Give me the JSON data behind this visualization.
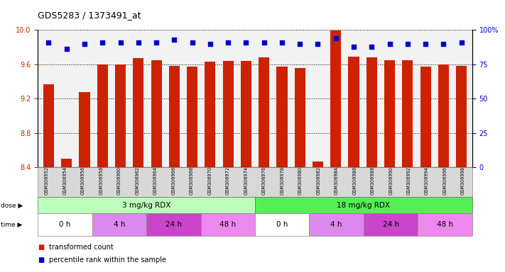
{
  "title": "GDS5283 / 1373491_at",
  "samples": [
    "GSM306952",
    "GSM306954",
    "GSM306956",
    "GSM306958",
    "GSM306960",
    "GSM306962",
    "GSM306964",
    "GSM306966",
    "GSM306968",
    "GSM306970",
    "GSM306972",
    "GSM306974",
    "GSM306976",
    "GSM306978",
    "GSM306980",
    "GSM306982",
    "GSM306984",
    "GSM306986",
    "GSM306988",
    "GSM306990",
    "GSM306992",
    "GSM306994",
    "GSM306996",
    "GSM306998"
  ],
  "bar_values": [
    9.37,
    8.5,
    9.28,
    9.6,
    9.6,
    9.67,
    9.65,
    9.58,
    9.57,
    9.63,
    9.64,
    9.64,
    9.68,
    9.57,
    9.56,
    8.47,
    9.99,
    9.69,
    9.68,
    9.65,
    9.65,
    9.57,
    9.6,
    9.58
  ],
  "percentile_values": [
    91,
    86,
    90,
    91,
    91,
    91,
    91,
    93,
    91,
    90,
    91,
    91,
    91,
    91,
    90,
    90,
    94,
    88,
    88,
    90,
    90,
    90,
    90,
    91
  ],
  "ylim_left": [
    8.4,
    10.0
  ],
  "ylim_right": [
    0,
    100
  ],
  "yticks_left": [
    8.4,
    8.8,
    9.2,
    9.6,
    10.0
  ],
  "yticks_right": [
    0,
    25,
    50,
    75,
    100
  ],
  "bar_color": "#cc2200",
  "percentile_color": "#0000cc",
  "bar_base": 8.4,
  "dose_groups": [
    {
      "label": "3 mg/kg RDX",
      "start": 0,
      "end": 11,
      "color": "#bbffbb"
    },
    {
      "label": "18 mg/kg RDX",
      "start": 12,
      "end": 23,
      "color": "#55ee55"
    }
  ],
  "time_groups": [
    {
      "label": "0 h",
      "start": 0,
      "end": 2,
      "color": "#ffffff"
    },
    {
      "label": "4 h",
      "start": 3,
      "end": 5,
      "color": "#dd88ee"
    },
    {
      "label": "24 h",
      "start": 6,
      "end": 8,
      "color": "#cc44cc"
    },
    {
      "label": "48 h",
      "start": 9,
      "end": 11,
      "color": "#ee88ee"
    },
    {
      "label": "0 h",
      "start": 12,
      "end": 14,
      "color": "#ffffff"
    },
    {
      "label": "4 h",
      "start": 15,
      "end": 17,
      "color": "#dd88ee"
    },
    {
      "label": "24 h",
      "start": 18,
      "end": 20,
      "color": "#cc44cc"
    },
    {
      "label": "48 h",
      "start": 21,
      "end": 23,
      "color": "#ee88ee"
    }
  ],
  "axis_color_left": "#cc2200",
  "axis_color_right": "#0000cc",
  "bg_color": "#f2f2f2",
  "tick_bg_color": "#d8d8d8",
  "fig_width": 7.11,
  "fig_height": 3.84,
  "dpi": 100
}
